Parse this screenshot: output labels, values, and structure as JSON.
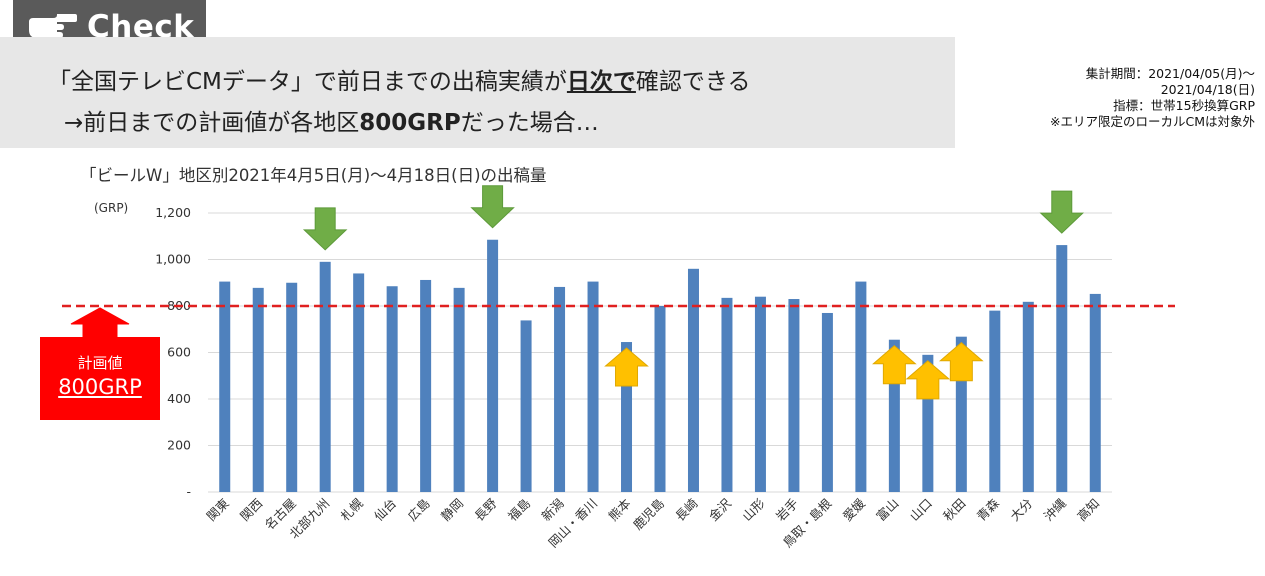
{
  "header": {
    "check_label": "Check",
    "line1_pre": "「全国テレビCMデータ」で前日までの出稿実績が",
    "line1_em": "日次で",
    "line1_post": "確認できる",
    "line2_pre": "→前日までの計画値が各地区",
    "line2_em": "800GRP",
    "line2_post": "だった場合…"
  },
  "period": {
    "line1": "集計期間：2021/04/05(月)～",
    "line2": "2021/04/18(日)",
    "line3": "指標：世帯15秒換算GRP",
    "line4": "※エリア限定のローカルCMは対象外"
  },
  "plan_box": {
    "label": "計画値",
    "value": "800GRP"
  },
  "colors": {
    "bar": "#4f81bd",
    "plan_line": "#e02020",
    "plan_box": "#ff0000",
    "down_arrow": "#70ad47",
    "up_arrow": "#ffc000"
  },
  "chart_data": {
    "type": "bar",
    "title": "「ビールW」地区別2021年4月5日(月)～4月18日(日)の出稿量",
    "ylabel": "(GRP)",
    "ylim": [
      0,
      1200
    ],
    "yticks": [
      0,
      200,
      400,
      600,
      800,
      1000,
      1200
    ],
    "ytick_labels": [
      "-",
      "200",
      "400",
      "600",
      "800",
      "1,000",
      "1,200"
    ],
    "grid": true,
    "reference_line": 800,
    "categories": [
      "関東",
      "関西",
      "名古屋",
      "北部九州",
      "札幌",
      "仙台",
      "広島",
      "静岡",
      "長野",
      "福島",
      "新潟",
      "岡山・香川",
      "熊本",
      "鹿児島",
      "長崎",
      "金沢",
      "山形",
      "岩手",
      "鳥取・島根",
      "愛媛",
      "富山",
      "山口",
      "秋田",
      "青森",
      "大分",
      "沖縄",
      "高知"
    ],
    "values": [
      905,
      878,
      900,
      990,
      940,
      885,
      912,
      878,
      1085,
      738,
      882,
      905,
      645,
      800,
      960,
      835,
      840,
      830,
      770,
      905,
      655,
      590,
      668,
      780,
      818,
      1062,
      852
    ],
    "annotations": {
      "down_arrows": [
        "北部九州",
        "長野",
        "沖縄"
      ],
      "up_arrows": [
        "熊本",
        "富山",
        "山口",
        "秋田"
      ]
    }
  }
}
